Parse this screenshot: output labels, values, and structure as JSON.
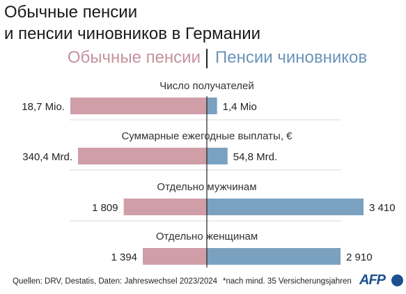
{
  "header": {
    "title_line1": "Обычные пенсии",
    "title_line2": "и пенсии чиновников в Германии"
  },
  "legend": {
    "left": "Обычные пенсии",
    "right": "Пенсии чиновников"
  },
  "colors": {
    "regular": "#cf9ea7",
    "civil": "#7ba1c1"
  },
  "chart_data": {
    "type": "bar",
    "orientation": "horizontal-diverging",
    "groups": [
      {
        "label": "Число получателей",
        "left_value": 18.7,
        "right_value": 1.4,
        "left_text": "18,7 Mio.",
        "right_text": "1,4 Mio"
      },
      {
        "label": "Суммарные ежегодные выплаты, €",
        "left_value": 340.4,
        "right_value": 54.8,
        "left_text": "340,4 Mrd.",
        "right_text": "54,8 Mrd."
      },
      {
        "label": "Отдельно мужчинам",
        "left_value": 1809,
        "right_value": 3410,
        "left_text": "1 809",
        "right_text": "3 410"
      },
      {
        "label": "Отдельно женщинам",
        "left_value": 1394,
        "right_value": 2910,
        "left_text": "1 394",
        "right_text": "2 910"
      }
    ],
    "series": [
      {
        "name": "Обычные пенсии",
        "side": "left"
      },
      {
        "name": "Пенсии чиновников",
        "side": "right"
      }
    ]
  },
  "footer": {
    "sources": "Quellen: DRV, Destatis, Daten: Jahreswechsel 2023/2024",
    "note": "*nach mind. 35 Versicherungsjahren",
    "logo": "AFP"
  }
}
